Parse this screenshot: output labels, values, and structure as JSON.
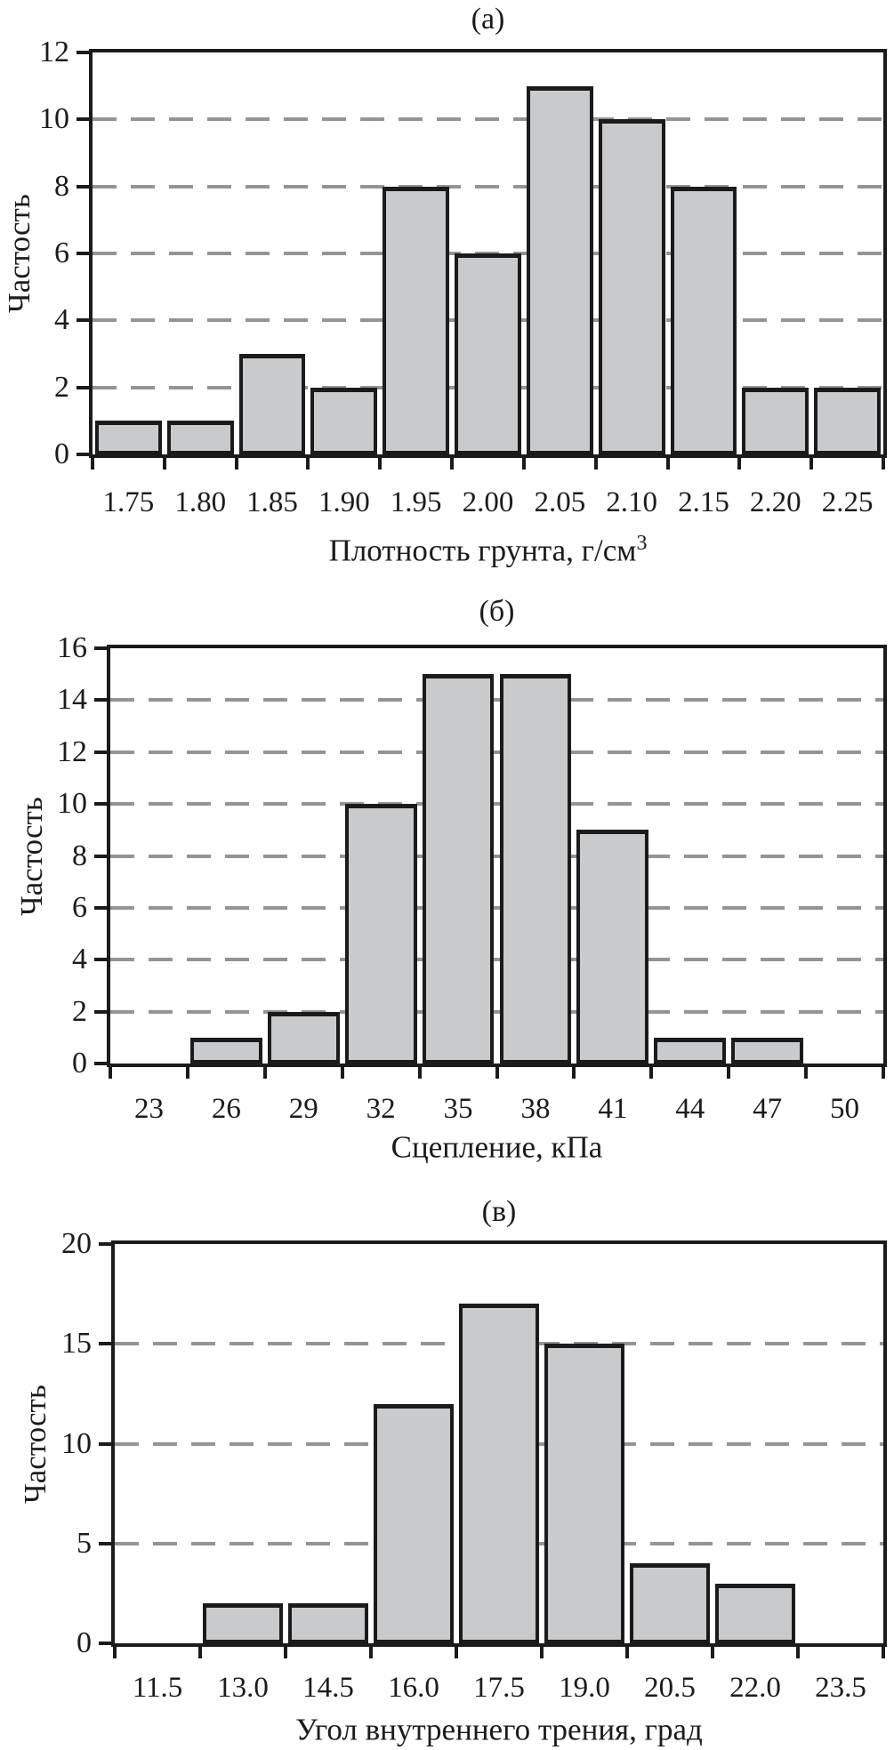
{
  "page": {
    "background": "#ffffff",
    "description": "Three stacked frequency histograms of soil properties, panels (а), (б), (в)"
  },
  "colors": {
    "bar_fill": "#c9cacb",
    "bar_border": "#1b1b1b",
    "axis": "#1b1b1b",
    "grid_dash": "#949494",
    "text": "#1b1b1b"
  },
  "chart_data": [
    {
      "type": "bar",
      "title": "(а)",
      "ylabel": "Частость",
      "xlabel": "Плотность грунта, г/см",
      "xlabel_sup": "3",
      "categories": [
        "1.75",
        "1.80",
        "1.85",
        "1.90",
        "1.95",
        "2.00",
        "2.05",
        "2.10",
        "2.15",
        "2.20",
        "2.25"
      ],
      "values": [
        1,
        1,
        3,
        2,
        8,
        6,
        11,
        10,
        8,
        2,
        2
      ],
      "ylim": [
        0,
        12
      ],
      "yticks": [
        0,
        2,
        4,
        6,
        8,
        10,
        12
      ],
      "grid": "horizontal-dashed",
      "legend": "none"
    },
    {
      "type": "bar",
      "title": "(б)",
      "ylabel": "Частость",
      "xlabel": "Сцепление, кПа",
      "xlabel_sup": "",
      "categories": [
        "23",
        "26",
        "29",
        "32",
        "35",
        "38",
        "41",
        "44",
        "47",
        "50"
      ],
      "values": [
        0,
        1,
        2,
        10,
        15,
        15,
        9,
        1,
        1,
        0
      ],
      "ylim": [
        0,
        16
      ],
      "yticks": [
        0,
        2,
        4,
        6,
        8,
        10,
        12,
        14,
        16
      ],
      "grid": "horizontal-dashed",
      "legend": "none"
    },
    {
      "type": "bar",
      "title": "(в)",
      "ylabel": "Частость",
      "xlabel": "Угол внутреннего трения, град",
      "xlabel_sup": "",
      "categories": [
        "11.5",
        "13.0",
        "14.5",
        "16.0",
        "17.5",
        "19.0",
        "20.5",
        "22.0",
        "23.5"
      ],
      "values": [
        0,
        2,
        2,
        12,
        17,
        15,
        4,
        3,
        0
      ],
      "ylim": [
        0,
        20
      ],
      "yticks": [
        0,
        5,
        10,
        15,
        20
      ],
      "grid": "horizontal-dashed",
      "legend": "none"
    }
  ]
}
